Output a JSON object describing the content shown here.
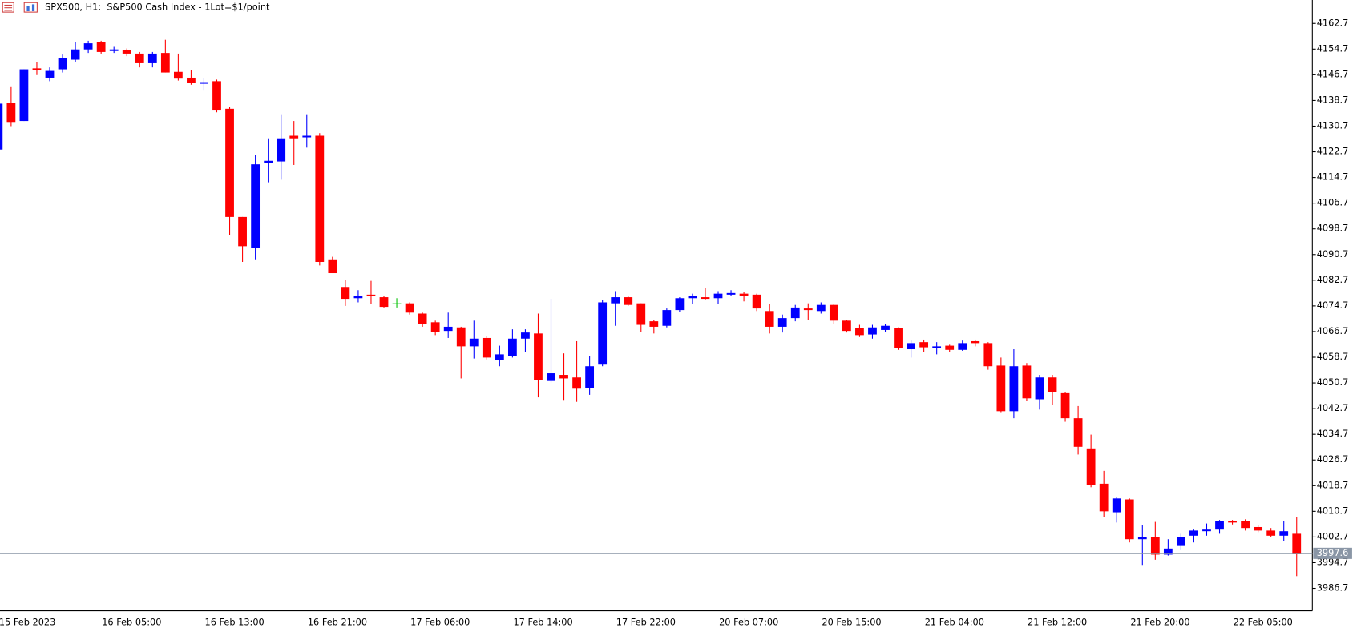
{
  "chart_data": {
    "type": "candlestick",
    "title": "SPX500, H1:  S&P500 Cash Index - 1Lot=$1/point",
    "categories": [
      "15 Feb 2023",
      null,
      null,
      null,
      null,
      null,
      null,
      null,
      "16 Feb 05:00",
      null,
      null,
      null,
      null,
      null,
      null,
      null,
      "16 Feb 13:00",
      null,
      null,
      null,
      null,
      null,
      null,
      null,
      "16 Feb 21:00",
      null,
      null,
      null,
      null,
      null,
      null,
      null,
      "17 Feb 06:00",
      null,
      null,
      null,
      null,
      null,
      null,
      null,
      "17 Feb 14:00",
      null,
      null,
      null,
      null,
      null,
      null,
      null,
      "17 Feb 22:00",
      null,
      null,
      null,
      null,
      null,
      null,
      null,
      "20 Feb 07:00",
      null,
      null,
      null,
      null,
      null,
      null,
      null,
      "20 Feb 15:00",
      null,
      null,
      null,
      null,
      null,
      null,
      null,
      "21 Feb 04:00",
      null,
      null,
      null,
      null,
      null,
      null,
      null,
      "21 Feb 12:00",
      null,
      null,
      null,
      null,
      null,
      null,
      null,
      "21 Feb 20:00",
      null,
      null,
      null,
      null,
      null,
      null,
      null,
      "22 Feb 05:00",
      null,
      null,
      null,
      null,
      null
    ],
    "open": [
      4123.4,
      4137.9,
      4132.3,
      4148.7,
      4145.8,
      4148.4,
      4151.4,
      4154.6,
      4156.8,
      4154.1,
      4154.4,
      4153.3,
      4150.3,
      4153.5,
      4147.6,
      4145.8,
      4143.9,
      4144.7,
      4136.1,
      4102.4,
      4092.7,
      4119.1,
      4119.7,
      4127.7,
      4127.2,
      4127.7,
      4089.2,
      4080.6,
      4077.1,
      4078.2,
      4077.4,
      4075.5,
      4075.5,
      4072.3,
      4069.6,
      4066.9,
      4068.0,
      4062.1,
      4064.7,
      4057.8,
      4059.1,
      4064.5,
      4066.1,
      4051.3,
      4053.2,
      4052.4,
      4049.1,
      4056.4,
      4075.5,
      4077.4,
      4075.5,
      4069.9,
      4068.5,
      4073.4,
      4077.1,
      4077.4,
      4077.1,
      4078.2,
      4078.5,
      4078.2,
      4073.1,
      4068.2,
      4070.9,
      4073.9,
      4073.1,
      4075.0,
      4070.1,
      4067.7,
      4065.8,
      4067.2,
      4067.7,
      4061.2,
      4063.4,
      4061.5,
      4062.3,
      4061.0,
      4063.7,
      4063.1,
      4056.1,
      4041.9,
      4056.1,
      4045.6,
      4052.4,
      4047.5,
      4039.7,
      4030.3,
      4019.3,
      4010.4,
      4014.4,
      4002.0,
      4002.6,
      3997.2,
      3999.9,
      4003.1,
      4004.5,
      4005.0,
      4007.7,
      4007.7,
      4005.8,
      4004.7,
      4003.1,
      4003.7
    ],
    "high": [
      4138.2,
      4143.1,
      4148.4,
      4150.6,
      4149.0,
      4153.0,
      4156.8,
      4157.3,
      4157.3,
      4155.4,
      4154.9,
      4153.8,
      4153.8,
      4157.6,
      4153.3,
      4148.2,
      4145.8,
      4145.2,
      4136.6,
      4102.4,
      4121.8,
      4126.9,
      4134.4,
      4132.3,
      4134.4,
      4128.5,
      4090.0,
      4082.8,
      4079.6,
      4082.5,
      4077.7,
      4077.1,
      4075.8,
      4072.6,
      4070.1,
      4072.6,
      4068.2,
      4070.1,
      4065.3,
      4062.3,
      4067.4,
      4067.4,
      4072.3,
      4076.9,
      4059.9,
      4063.7,
      4059.1,
      4076.6,
      4079.3,
      4077.7,
      4075.5,
      4070.4,
      4073.9,
      4077.4,
      4078.5,
      4080.4,
      4079.3,
      4079.6,
      4079.0,
      4078.5,
      4075.2,
      4072.0,
      4075.0,
      4075.5,
      4075.8,
      4075.2,
      4070.4,
      4068.8,
      4068.8,
      4069.1,
      4068.0,
      4063.9,
      4064.2,
      4063.4,
      4062.6,
      4063.9,
      4064.2,
      4063.4,
      4058.6,
      4061.2,
      4056.9,
      4053.2,
      4053.2,
      4047.8,
      4043.5,
      4034.6,
      4023.3,
      4015.2,
      4014.7,
      4006.4,
      4007.4,
      4002.0,
      4003.7,
      4005.0,
      4006.9,
      4008.0,
      4008.0,
      4008.2,
      4006.4,
      4005.5,
      4007.7,
      4008.8
    ],
    "low": [
      4123.4,
      4130.7,
      4132.3,
      4146.6,
      4144.7,
      4147.4,
      4150.6,
      4153.5,
      4153.3,
      4153.5,
      4152.5,
      4149.0,
      4149.0,
      4147.4,
      4144.9,
      4143.6,
      4142.0,
      4135.0,
      4096.8,
      4088.4,
      4089.2,
      4113.2,
      4114.0,
      4118.6,
      4124.0,
      4087.3,
      4084.9,
      4074.7,
      4075.8,
      4075.2,
      4074.2,
      4074.2,
      4072.0,
      4068.2,
      4065.6,
      4064.7,
      4052.1,
      4058.3,
      4058.0,
      4055.9,
      4058.6,
      4060.4,
      4046.2,
      4050.8,
      4045.4,
      4044.8,
      4047.0,
      4055.9,
      4068.5,
      4074.7,
      4066.6,
      4066.1,
      4068.0,
      4072.8,
      4075.2,
      4076.6,
      4075.2,
      4077.7,
      4076.1,
      4073.1,
      4066.1,
      4066.4,
      4069.9,
      4070.4,
      4072.3,
      4069.1,
      4066.4,
      4065.0,
      4064.5,
      4066.6,
      4061.0,
      4058.6,
      4060.4,
      4059.6,
      4060.4,
      4060.7,
      4062.1,
      4054.8,
      4041.6,
      4039.7,
      4045.1,
      4042.4,
      4043.8,
      4038.6,
      4028.4,
      4018.2,
      4008.8,
      4007.2,
      4001.0,
      3994.0,
      3995.6,
      3996.9,
      3998.6,
      4001.0,
      4003.1,
      4003.7,
      4006.6,
      4004.7,
      4004.2,
      4002.6,
      4001.5,
      3990.5
    ],
    "close": [
      4137.7,
      4132.0,
      4148.4,
      4148.2,
      4147.9,
      4151.9,
      4154.6,
      4156.5,
      4153.8,
      4154.6,
      4153.3,
      4150.3,
      4153.3,
      4147.4,
      4145.5,
      4144.1,
      4144.4,
      4135.8,
      4102.4,
      4093.3,
      4118.8,
      4119.9,
      4126.9,
      4126.9,
      4127.7,
      4088.4,
      4084.9,
      4076.9,
      4077.9,
      4077.7,
      4074.4,
      4075.5,
      4072.6,
      4069.1,
      4066.6,
      4068.2,
      4062.1,
      4064.5,
      4058.6,
      4059.6,
      4064.5,
      4066.4,
      4051.6,
      4053.7,
      4052.1,
      4048.9,
      4055.9,
      4075.8,
      4077.4,
      4075.0,
      4068.8,
      4068.2,
      4073.4,
      4077.1,
      4077.9,
      4076.9,
      4078.5,
      4078.7,
      4077.7,
      4073.9,
      4068.2,
      4070.9,
      4074.2,
      4073.4,
      4075.0,
      4070.1,
      4066.9,
      4065.6,
      4068.0,
      4068.5,
      4061.5,
      4063.1,
      4061.8,
      4062.1,
      4061.0,
      4063.1,
      4063.1,
      4055.9,
      4041.9,
      4055.9,
      4045.9,
      4052.4,
      4047.8,
      4039.7,
      4030.8,
      4019.0,
      4010.7,
      4014.7,
      4002.0,
      4002.6,
      3997.2,
      3999.1,
      4002.6,
      4004.7,
      4005.0,
      4007.7,
      4007.2,
      4005.5,
      4004.7,
      4003.1,
      4004.5,
      3997.6
    ],
    "up_color": "#0000ff",
    "down_color": "#ff0000",
    "doji_color": "#00c000",
    "ylim": [
      3979.7,
      4170.0
    ],
    "yticks": [
      4162.7,
      4154.7,
      4146.7,
      4138.7,
      4130.7,
      4122.7,
      4114.7,
      4106.7,
      4098.7,
      4090.7,
      4082.7,
      4074.7,
      4066.7,
      4058.7,
      4050.7,
      4042.7,
      4034.7,
      4026.7,
      4018.7,
      4010.7,
      4002.7,
      3994.7,
      3986.7
    ],
    "last_price": 3997.6,
    "last_price_color": "#8a96a6"
  }
}
